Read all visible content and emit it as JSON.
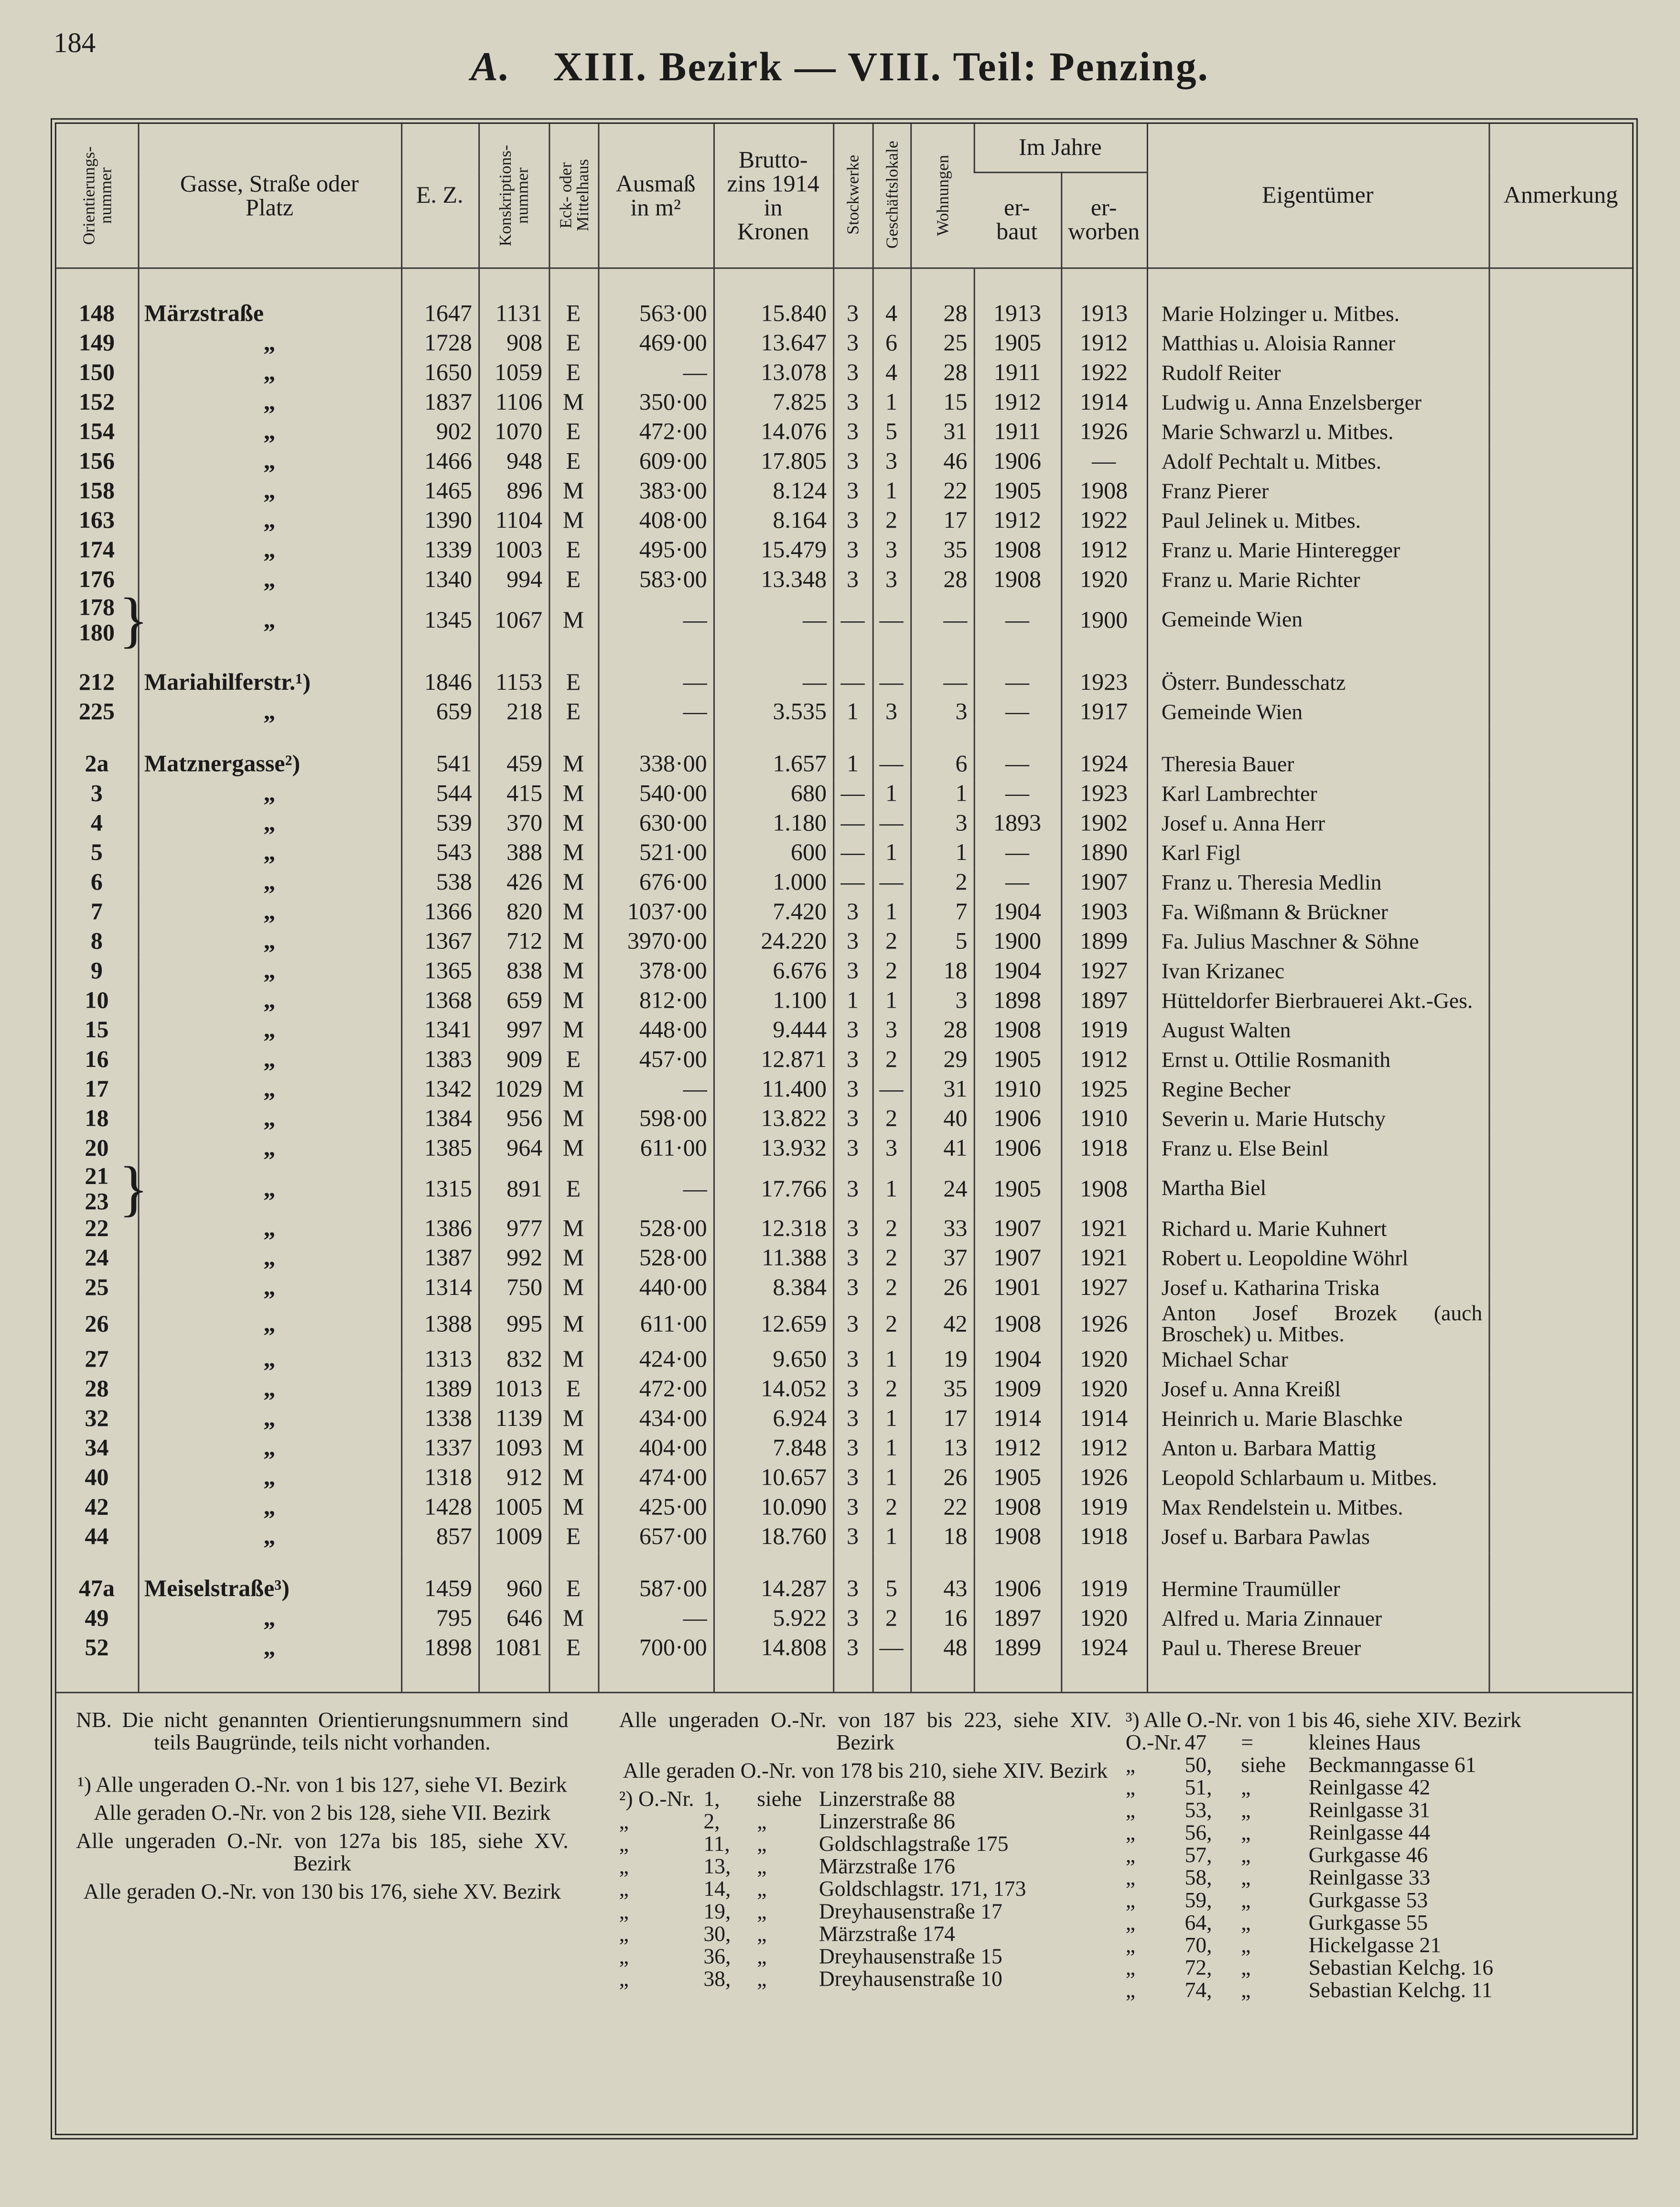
{
  "page_number": "184",
  "title_prefix": "A.",
  "title": "XIII. Bezirk — VIII. Teil: Penzing.",
  "table": {
    "headers": [
      "Orientierungs-\nnummer",
      "Gasse, Straße oder\nPlatz",
      "E. Z.",
      "Konskriptions-\nnummer",
      "Eck- oder\nMittelhaus",
      "Ausmaß\nin m²",
      "Brutto-\nzins 1914\nin\nKronen",
      "Stockwerke",
      "Geschäftslokale",
      "Wohnungen",
      "er-\nbaut",
      "er-\nworben",
      "Eigentümer",
      "Anmerkung"
    ],
    "year_group": "Im Jahre",
    "rows": [
      [
        "148",
        "Märzstraße",
        "1647",
        "1131",
        "E",
        "563·00",
        "15.840",
        "3",
        "4",
        "28",
        "1913",
        "1913",
        "Marie Holzinger u. Mitbes."
      ],
      [
        "149",
        "„",
        "1728",
        "908",
        "E",
        "469·00",
        "13.647",
        "3",
        "6",
        "25",
        "1905",
        "1912",
        "Matthias u. Aloisia Ranner"
      ],
      [
        "150",
        "„",
        "1650",
        "1059",
        "E",
        "—",
        "13.078",
        "3",
        "4",
        "28",
        "1911",
        "1922",
        "Rudolf Reiter"
      ],
      [
        "152",
        "„",
        "1837",
        "1106",
        "M",
        "350·00",
        "7.825",
        "3",
        "1",
        "15",
        "1912",
        "1914",
        "Ludwig u. Anna Enzelsberger"
      ],
      [
        "154",
        "„",
        "902",
        "1070",
        "E",
        "472·00",
        "14.076",
        "3",
        "5",
        "31",
        "1911",
        "1926",
        "Marie Schwarzl u. Mitbes."
      ],
      [
        "156",
        "„",
        "1466",
        "948",
        "E",
        "609·00",
        "17.805",
        "3",
        "3",
        "46",
        "1906",
        "—",
        "Adolf Pechtalt u. Mitbes."
      ],
      [
        "158",
        "„",
        "1465",
        "896",
        "M",
        "383·00",
        "8.124",
        "3",
        "1",
        "22",
        "1905",
        "1908",
        "Franz Pierer"
      ],
      [
        "163",
        "„",
        "1390",
        "1104",
        "M",
        "408·00",
        "8.164",
        "3",
        "2",
        "17",
        "1912",
        "1922",
        "Paul Jelinek u. Mitbes."
      ],
      [
        "174",
        "„",
        "1339",
        "1003",
        "E",
        "495·00",
        "15.479",
        "3",
        "3",
        "35",
        "1908",
        "1912",
        "Franz u. Marie Hinteregger"
      ],
      [
        "176",
        "„",
        "1340",
        "994",
        "E",
        "583·00",
        "13.348",
        "3",
        "3",
        "28",
        "1908",
        "1920",
        "Franz u. Marie Richter"
      ],
      [
        [
          "178",
          "180"
        ],
        "„",
        "1345",
        "1067",
        "M",
        "—",
        "—",
        "—",
        "—",
        "—",
        "—",
        "1900",
        "Gemeinde Wien"
      ],
      [
        "212",
        "Mariahilferstr.¹)",
        "1846",
        "1153",
        "E",
        "—",
        "—",
        "—",
        "—",
        "—",
        "—",
        "1923",
        "Österr. Bundesschatz"
      ],
      [
        "225",
        "„",
        "659",
        "218",
        "E",
        "—",
        "3.535",
        "1",
        "3",
        "3",
        "—",
        "1917",
        "Gemeinde Wien"
      ],
      [
        "2a",
        "Matznergasse²)",
        "541",
        "459",
        "M",
        "338·00",
        "1.657",
        "1",
        "—",
        "6",
        "—",
        "1924",
        "Theresia Bauer"
      ],
      [
        "3",
        "„",
        "544",
        "415",
        "M",
        "540·00",
        "680",
        "—",
        "1",
        "1",
        "—",
        "1923",
        "Karl Lambrechter"
      ],
      [
        "4",
        "„",
        "539",
        "370",
        "M",
        "630·00",
        "1.180",
        "—",
        "—",
        "3",
        "1893",
        "1902",
        "Josef u. Anna Herr"
      ],
      [
        "5",
        "„",
        "543",
        "388",
        "M",
        "521·00",
        "600",
        "—",
        "1",
        "1",
        "—",
        "1890",
        "Karl Figl"
      ],
      [
        "6",
        "„",
        "538",
        "426",
        "M",
        "676·00",
        "1.000",
        "—",
        "—",
        "2",
        "—",
        "1907",
        "Franz u. Theresia Medlin"
      ],
      [
        "7",
        "„",
        "1366",
        "820",
        "M",
        "1037·00",
        "7.420",
        "3",
        "1",
        "7",
        "1904",
        "1903",
        "Fa. Wißmann & Brückner"
      ],
      [
        "8",
        "„",
        "1367",
        "712",
        "M",
        "3970·00",
        "24.220",
        "3",
        "2",
        "5",
        "1900",
        "1899",
        "Fa. Julius Maschner & Söhne"
      ],
      [
        "9",
        "„",
        "1365",
        "838",
        "M",
        "378·00",
        "6.676",
        "3",
        "2",
        "18",
        "1904",
        "1927",
        "Ivan Krizanec"
      ],
      [
        "10",
        "„",
        "1368",
        "659",
        "M",
        "812·00",
        "1.100",
        "1",
        "1",
        "3",
        "1898",
        "1897",
        "Hütteldorfer Bierbrauerei Akt.-Ges."
      ],
      [
        "15",
        "„",
        "1341",
        "997",
        "M",
        "448·00",
        "9.444",
        "3",
        "3",
        "28",
        "1908",
        "1919",
        "August Walten"
      ],
      [
        "16",
        "„",
        "1383",
        "909",
        "E",
        "457·00",
        "12.871",
        "3",
        "2",
        "29",
        "1905",
        "1912",
        "Ernst u. Ottilie Rosmanith"
      ],
      [
        "17",
        "„",
        "1342",
        "1029",
        "M",
        "—",
        "11.400",
        "3",
        "—",
        "31",
        "1910",
        "1925",
        "Regine Becher"
      ],
      [
        "18",
        "„",
        "1384",
        "956",
        "M",
        "598·00",
        "13.822",
        "3",
        "2",
        "40",
        "1906",
        "1910",
        "Severin u. Marie Hutschy"
      ],
      [
        "20",
        "„",
        "1385",
        "964",
        "M",
        "611·00",
        "13.932",
        "3",
        "3",
        "41",
        "1906",
        "1918",
        "Franz u. Else Beinl"
      ],
      [
        [
          "21",
          "23"
        ],
        "„",
        "1315",
        "891",
        "E",
        "—",
        "17.766",
        "3",
        "1",
        "24",
        "1905",
        "1908",
        "Martha Biel"
      ],
      [
        "22",
        "„",
        "1386",
        "977",
        "M",
        "528·00",
        "12.318",
        "3",
        "2",
        "33",
        "1907",
        "1921",
        "Richard u. Marie Kuhnert"
      ],
      [
        "24",
        "„",
        "1387",
        "992",
        "M",
        "528·00",
        "11.388",
        "3",
        "2",
        "37",
        "1907",
        "1921",
        "Robert u. Leopoldine Wöhrl"
      ],
      [
        "25",
        "„",
        "1314",
        "750",
        "M",
        "440·00",
        "8.384",
        "3",
        "2",
        "26",
        "1901",
        "1927",
        "Josef u. Katharina Triska"
      ],
      [
        "26",
        "„",
        "1388",
        "995",
        "M",
        "611·00",
        "12.659",
        "3",
        "2",
        "42",
        "1908",
        "1926",
        "Anton Josef Brozek (auch Broschek) u. Mitbes."
      ],
      [
        "27",
        "„",
        "1313",
        "832",
        "M",
        "424·00",
        "9.650",
        "3",
        "1",
        "19",
        "1904",
        "1920",
        "Michael Schar"
      ],
      [
        "28",
        "„",
        "1389",
        "1013",
        "E",
        "472·00",
        "14.052",
        "3",
        "2",
        "35",
        "1909",
        "1920",
        "Josef u. Anna Kreißl"
      ],
      [
        "32",
        "„",
        "1338",
        "1139",
        "M",
        "434·00",
        "6.924",
        "3",
        "1",
        "17",
        "1914",
        "1914",
        "Heinrich u. Marie Blaschke"
      ],
      [
        "34",
        "„",
        "1337",
        "1093",
        "M",
        "404·00",
        "7.848",
        "3",
        "1",
        "13",
        "1912",
        "1912",
        "Anton u. Barbara Mattig"
      ],
      [
        "40",
        "„",
        "1318",
        "912",
        "M",
        "474·00",
        "10.657",
        "3",
        "1",
        "26",
        "1905",
        "1926",
        "Leopold Schlarbaum u. Mitbes."
      ],
      [
        "42",
        "„",
        "1428",
        "1005",
        "M",
        "425·00",
        "10.090",
        "3",
        "2",
        "22",
        "1908",
        "1919",
        "Max Rendelstein u. Mitbes."
      ],
      [
        "44",
        "„",
        "857",
        "1009",
        "E",
        "657·00",
        "18.760",
        "3",
        "1",
        "18",
        "1908",
        "1918",
        "Josef u. Barbara Pawlas"
      ],
      [
        "47a",
        "Meiselstraße³)",
        "1459",
        "960",
        "E",
        "587·00",
        "14.287",
        "3",
        "5",
        "43",
        "1906",
        "1919",
        "Hermine Traumüller"
      ],
      [
        "49",
        "„",
        "795",
        "646",
        "M",
        "—",
        "5.922",
        "3",
        "2",
        "16",
        "1897",
        "1920",
        "Alfred u. Maria Zinnauer"
      ],
      [
        "52",
        "„",
        "1898",
        "1081",
        "E",
        "700·00",
        "14.808",
        "3",
        "—",
        "48",
        "1899",
        "1924",
        "Paul u. Therese Breuer"
      ]
    ]
  },
  "notes": {
    "nb": "NB. Die nicht genannten Orientierungsnummern sind teils Baugründe, teils nicht vorhanden.",
    "note1": [
      "¹) Alle ungeraden O.-Nr. von 1 bis 127, siehe VI. Bezirk",
      "Alle geraden O.-Nr. von 2 bis 128, siehe VII. Bezirk",
      "Alle ungeraden O.-Nr. von 127a bis 185, siehe XV. Bezirk",
      "Alle geraden O.-Nr. von 130 bis 176, siehe XV. Bezirk"
    ],
    "note1_cont": [
      "Alle ungeraden O.-Nr. von 187 bis 223, siehe XIV. Bezirk",
      "Alle geraden O.-Nr. von 178 bis 210, siehe XIV. Bezirk"
    ],
    "note2": [
      [
        "²) O.-Nr.",
        "1,",
        "siehe",
        "Linzerstraße 88"
      ],
      [
        "„",
        "2,",
        "„",
        "Linzerstraße 86"
      ],
      [
        "„",
        "11,",
        "„",
        "Goldschlagstraße 175"
      ],
      [
        "„",
        "13,",
        "„",
        "Märzstraße 176"
      ],
      [
        "„",
        "14,",
        "„",
        "Goldschlagstr. 171, 173"
      ],
      [
        "„",
        "19,",
        "„",
        "Dreyhausenstraße 17"
      ],
      [
        "„",
        "30,",
        "„",
        "Märzstraße 174"
      ],
      [
        "„",
        "36,",
        "„",
        "Dreyhausenstraße 15"
      ],
      [
        "„",
        "38,",
        "„",
        "Dreyhausenstraße 10"
      ]
    ],
    "note3_intro": "³) Alle O.-Nr. von 1 bis 46, siehe XIV. Bezirk",
    "note3": [
      [
        "O.-Nr.",
        "47",
        "=",
        "kleines Haus"
      ],
      [
        "„",
        "50,",
        "siehe",
        "Beckmanngasse 61"
      ],
      [
        "„",
        "51,",
        "„",
        "Reinlgasse 42"
      ],
      [
        "„",
        "53,",
        "„",
        "Reinlgasse 31"
      ],
      [
        "„",
        "56,",
        "„",
        "Reinlgasse 44"
      ],
      [
        "„",
        "57,",
        "„",
        "Gurkgasse 46"
      ],
      [
        "„",
        "58,",
        "„",
        "Reinlgasse 33"
      ],
      [
        "„",
        "59,",
        "„",
        "Gurkgasse 53"
      ],
      [
        "„",
        "64,",
        "„",
        "Gurkgasse 55"
      ],
      [
        "„",
        "70,",
        "„",
        "Hickelgasse 21"
      ],
      [
        "„",
        "72,",
        "„",
        "Sebastian Kelchg. 16"
      ],
      [
        "„",
        "74,",
        "„",
        "Sebastian Kelchg. 11"
      ]
    ]
  }
}
